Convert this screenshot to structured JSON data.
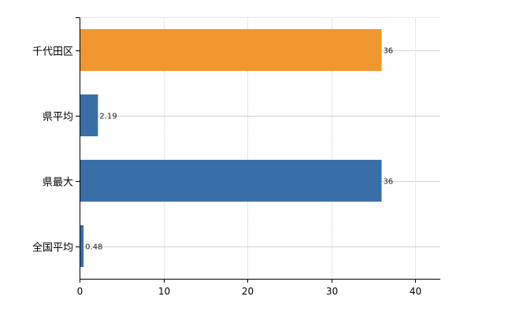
{
  "chart_data": {
    "type": "bar",
    "orientation": "horizontal",
    "categories": [
      "千代田区",
      "県平均",
      "県最大",
      "全国平均"
    ],
    "values": [
      36,
      2.19,
      36,
      0.48
    ],
    "data_labels": [
      "36",
      "2.19",
      "36",
      "0.48"
    ],
    "bar_colors": [
      "#f0962e",
      "#3a6ea8",
      "#3a6ea8",
      "#3a6ea8"
    ],
    "xlim": [
      0,
      43
    ],
    "x_ticks": [
      0,
      10,
      20,
      30,
      40
    ],
    "x_tick_labels": [
      "0",
      "10",
      "20",
      "30",
      "40"
    ],
    "grid": true,
    "title": "",
    "xlabel": "",
    "ylabel": ""
  },
  "colors": {
    "highlight": "#f0962e",
    "default": "#3a6ea8",
    "grid": "#d0d0d0"
  }
}
